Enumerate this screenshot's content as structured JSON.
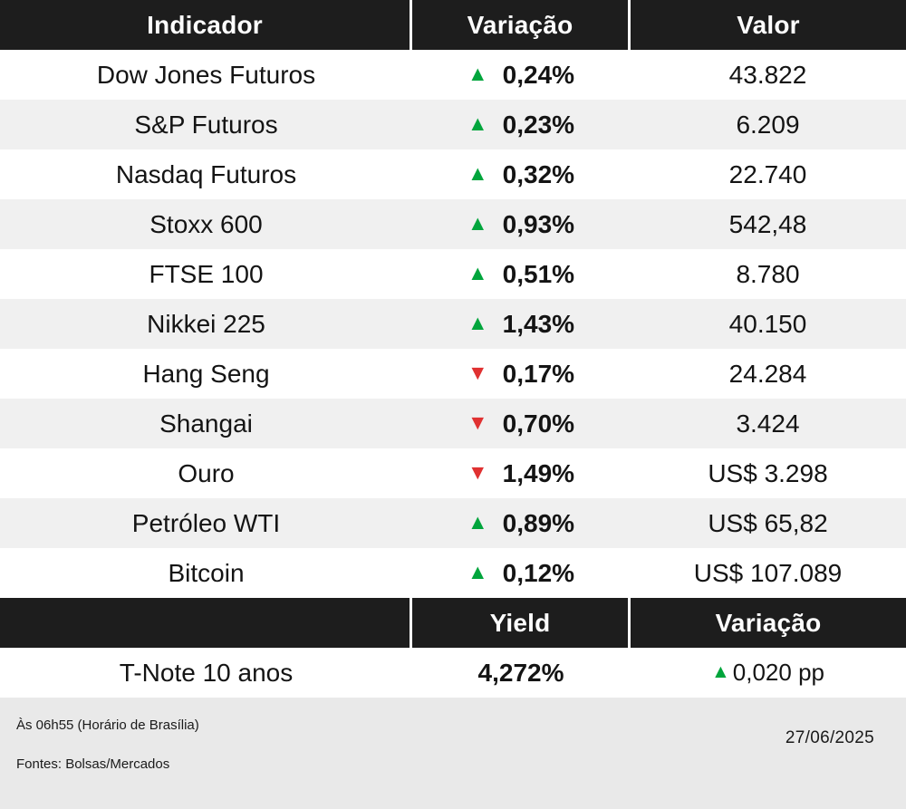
{
  "colors": {
    "header_bg": "#1d1d1d",
    "row_bg": "#ffffff",
    "row_alt_bg": "#f0f0f0",
    "footer_bg": "#e9e9e9",
    "up_green": "#00a53c",
    "down_red": "#e03131"
  },
  "icons": {
    "up_triangle": "▲",
    "down_triangle": "▼"
  },
  "table": {
    "headers": [
      "Indicador",
      "Variação",
      "Valor"
    ],
    "rows": [
      {
        "name": "Dow Jones Futuros",
        "direction": "up",
        "arrow": "▲",
        "variation": "0,24%",
        "value": "43.822"
      },
      {
        "name": "S&P Futuros",
        "direction": "up",
        "arrow": "▲",
        "variation": "0,23%",
        "value": "6.209"
      },
      {
        "name": "Nasdaq Futuros",
        "direction": "up",
        "arrow": "▲",
        "variation": "0,32%",
        "value": "22.740"
      },
      {
        "name": "Stoxx 600",
        "direction": "up",
        "arrow": "▲",
        "variation": "0,93%",
        "value": "542,48"
      },
      {
        "name": "FTSE 100",
        "direction": "up",
        "arrow": "▲",
        "variation": "0,51%",
        "value": "8.780"
      },
      {
        "name": "Nikkei 225",
        "direction": "up",
        "arrow": "▲",
        "variation": "1,43%",
        "value": "40.150"
      },
      {
        "name": "Hang Seng",
        "direction": "down",
        "arrow": "▼",
        "variation": "0,17%",
        "value": "24.284"
      },
      {
        "name": "Shangai",
        "direction": "down",
        "arrow": "▼",
        "variation": "0,70%",
        "value": "3.424"
      },
      {
        "name": "Ouro",
        "direction": "down",
        "arrow": "▼",
        "variation": "1,49%",
        "value": "US$ 3.298"
      },
      {
        "name": "Petróleo WTI",
        "direction": "up",
        "arrow": "▲",
        "variation": "0,89%",
        "value": "US$ 65,82"
      },
      {
        "name": "Bitcoin",
        "direction": "up",
        "arrow": "▲",
        "variation": "0,12%",
        "value": "US$ 107.089"
      }
    ]
  },
  "bond_section": {
    "headers": [
      "",
      "Yield",
      "Variação"
    ],
    "row": {
      "name": "T-Note 10 anos",
      "yield": "4,272%",
      "direction": "up",
      "arrow": "▲",
      "variation": "0,020 pp"
    }
  },
  "footer": {
    "time_note": "Às 06h55 (Horário de Brasília)",
    "sources": "Fontes: Bolsas/Mercados",
    "date": "27/06/2025"
  },
  "chart_data": {
    "type": "table",
    "title": "",
    "columns": [
      "Indicador",
      "Variação",
      "Valor"
    ],
    "rows": [
      [
        "Dow Jones Futuros",
        "+0,24%",
        "43.822"
      ],
      [
        "S&P Futuros",
        "+0,23%",
        "6.209"
      ],
      [
        "Nasdaq Futuros",
        "+0,32%",
        "22.740"
      ],
      [
        "Stoxx 600",
        "+0,93%",
        "542,48"
      ],
      [
        "FTSE 100",
        "+0,51%",
        "8.780"
      ],
      [
        "Nikkei 225",
        "+1,43%",
        "40.150"
      ],
      [
        "Hang Seng",
        "-0,17%",
        "24.284"
      ],
      [
        "Shangai",
        "-0,70%",
        "3.424"
      ],
      [
        "Ouro",
        "-1,49%",
        "US$ 3.298"
      ],
      [
        "Petróleo WTI",
        "+0,89%",
        "US$ 65,82"
      ],
      [
        "Bitcoin",
        "+0,12%",
        "US$ 107.089"
      ]
    ],
    "bond_columns": [
      "",
      "Yield",
      "Variação"
    ],
    "bond_rows": [
      [
        "T-Note 10 anos",
        "4,272%",
        "+0,020 pp"
      ]
    ]
  }
}
